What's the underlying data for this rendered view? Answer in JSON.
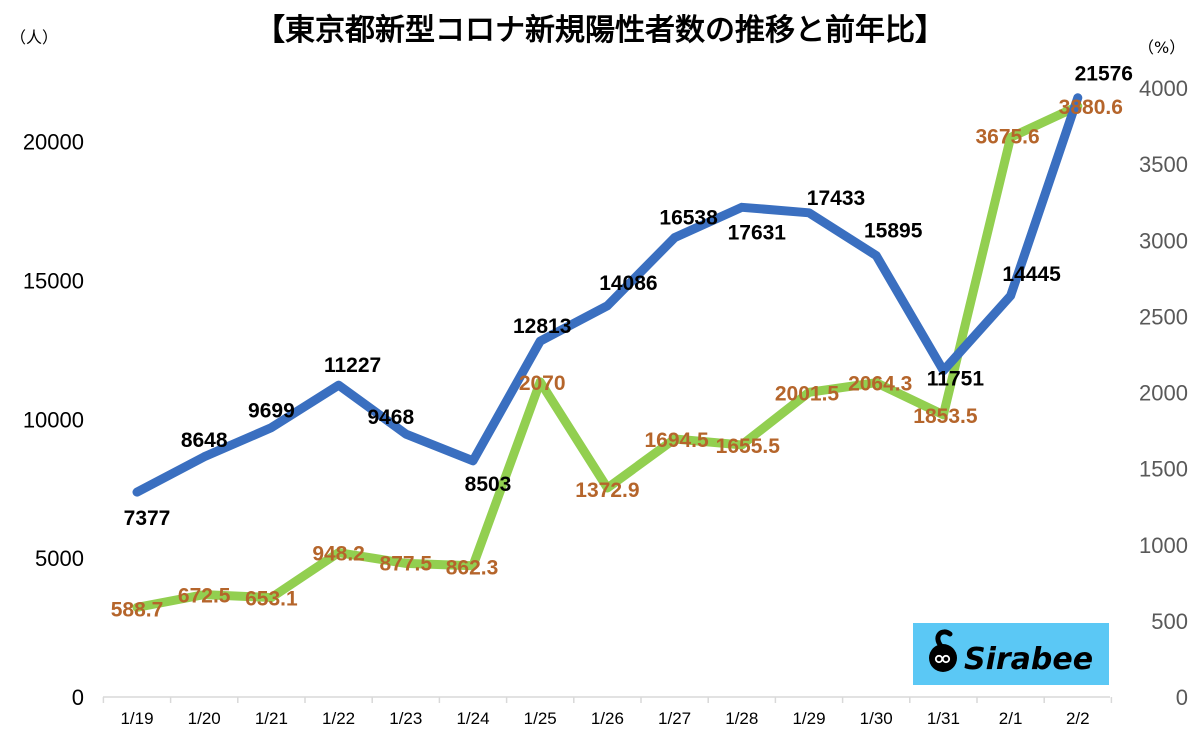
{
  "title": "【東京都新型コロナ新規陽性者数の推移と前年比】",
  "left_unit": "（人）",
  "right_unit": "（%）",
  "logo": {
    "text": "Sirabee",
    "background": "#5bc8f5"
  },
  "colors": {
    "primary": "#3a6fc0",
    "secondary": "#92cf50",
    "secondary_label": "#b5652b",
    "axis_right": "#595959"
  },
  "chart_data": {
    "type": "line",
    "categories": [
      "1/19",
      "1/20",
      "1/21",
      "1/22",
      "1/23",
      "1/24",
      "1/25",
      "1/26",
      "1/27",
      "1/28",
      "1/29",
      "1/30",
      "1/31",
      "2/1",
      "2/2"
    ],
    "series": [
      {
        "values": [
          7377,
          8648,
          9699,
          11227,
          9468,
          8503,
          12813,
          14086,
          16538,
          17631,
          17433,
          15895,
          11751,
          14445,
          21576
        ],
        "axis": "left",
        "color": "#3a6fc0",
        "labels": [
          "7377",
          "8648",
          "9699",
          "11227",
          "9468",
          "8503",
          "12813",
          "14086",
          "16538",
          "17631",
          "17433",
          "15895",
          "11751",
          "14445",
          "21576"
        ]
      },
      {
        "values": [
          588.7,
          672.5,
          653.1,
          948.2,
          877.5,
          862.3,
          2070,
          1372.9,
          1694.5,
          1655.5,
          2001.5,
          2064.3,
          1853.5,
          3675.6,
          3880.6
        ],
        "axis": "right",
        "color": "#92cf50",
        "labels": [
          "588.7",
          "672.5",
          "653.1",
          "948.2",
          "877.5",
          "862.3",
          "2070",
          "1372.9",
          "1694.5",
          "1655.5",
          "2001.5",
          "2064.3",
          "1853.5",
          "3675.6",
          "3880.6"
        ]
      }
    ],
    "y_left": {
      "range": [
        0,
        24000
      ],
      "ticks": [
        "0",
        "5000",
        "10000",
        "15000",
        "20000"
      ]
    },
    "y_right": {
      "range": [
        0,
        4000
      ],
      "ticks": [
        "0",
        "500",
        "1000",
        "1500",
        "2000",
        "2500",
        "3000",
        "3500",
        "4000"
      ]
    },
    "grid": false,
    "legend": "none"
  }
}
